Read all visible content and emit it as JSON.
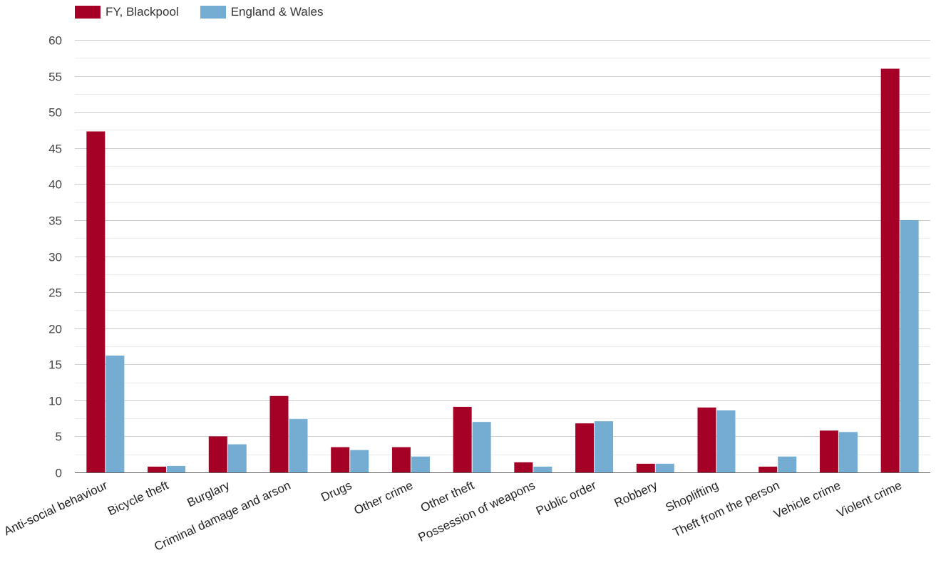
{
  "chart_data": {
    "type": "bar",
    "categories": [
      "Anti-social behaviour",
      "Bicycle theft",
      "Burglary",
      "Criminal damage and arson",
      "Drugs",
      "Other crime",
      "Other theft",
      "Possession of weapons",
      "Public order",
      "Robbery",
      "Shoplifting",
      "Theft from the person",
      "Vehicle crime",
      "Violent crime"
    ],
    "series": [
      {
        "name": "FY, Blackpool",
        "color": "#a50026",
        "values": [
          47.3,
          0.8,
          5.0,
          10.6,
          3.5,
          3.5,
          9.1,
          1.4,
          6.8,
          1.2,
          9.0,
          0.8,
          5.8,
          56.0
        ]
      },
      {
        "name": "England & Wales",
        "color": "#74add1",
        "values": [
          16.2,
          0.9,
          3.9,
          7.4,
          3.1,
          2.2,
          7.0,
          0.8,
          7.1,
          1.2,
          8.6,
          2.2,
          5.6,
          35.0
        ]
      }
    ],
    "ylim": [
      0,
      60
    ],
    "yticks": [
      0,
      5,
      10,
      15,
      20,
      25,
      30,
      35,
      40,
      45,
      50,
      55,
      60
    ],
    "grid": true,
    "legend": "top-left"
  }
}
